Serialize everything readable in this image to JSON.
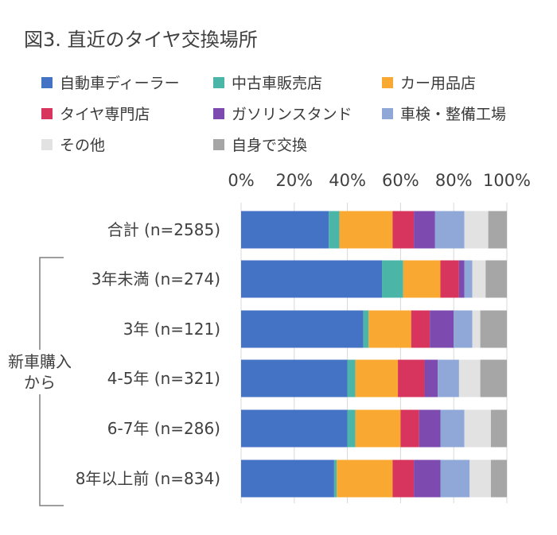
{
  "chart_data": {
    "type": "bar",
    "orientation": "horizontal",
    "stacked": "100%",
    "title": "図3. 直近のタイヤ交換場所",
    "x_ticks": [
      "0%",
      "20%",
      "40%",
      "60%",
      "80%",
      "100%"
    ],
    "xlim": [
      0,
      100
    ],
    "categories": [
      "合計 (n=2585)",
      "3年未満 (n=274)",
      "3年 (n=121)",
      "4-5年 (n=321)",
      "6-7年 (n=286)",
      "8年以上前 (n=834)"
    ],
    "group_label": "新車購入\nから",
    "group_label_lines": [
      "新車購入",
      "から"
    ],
    "legend_position": "top",
    "series": [
      {
        "name": "自動車ディーラー",
        "color": "#4472c4",
        "values": [
          33,
          53,
          46,
          40,
          40,
          35
        ]
      },
      {
        "name": "中古車販売店",
        "color": "#4bb5a8",
        "values": [
          4,
          8,
          2,
          3,
          3,
          1
        ]
      },
      {
        "name": "カー用品店",
        "color": "#f9a831",
        "values": [
          20,
          14,
          16,
          16,
          17,
          21
        ]
      },
      {
        "name": "タイヤ専門店",
        "color": "#d8355e",
        "values": [
          8,
          7,
          7,
          10,
          7,
          8
        ]
      },
      {
        "name": "ガソリンスタンド",
        "color": "#7d4bb0",
        "values": [
          8,
          2,
          9,
          5,
          8,
          10
        ]
      },
      {
        "name": "車検・整備工場",
        "color": "#8fa8d8",
        "values": [
          11,
          3,
          7,
          8,
          9,
          11
        ]
      },
      {
        "name": "その他",
        "color": "#e2e2e2",
        "values": [
          9,
          5,
          3,
          8,
          10,
          8
        ]
      },
      {
        "name": "自身で交換",
        "color": "#a6a6a6",
        "values": [
          7,
          8,
          10,
          10,
          6,
          6
        ]
      }
    ]
  }
}
